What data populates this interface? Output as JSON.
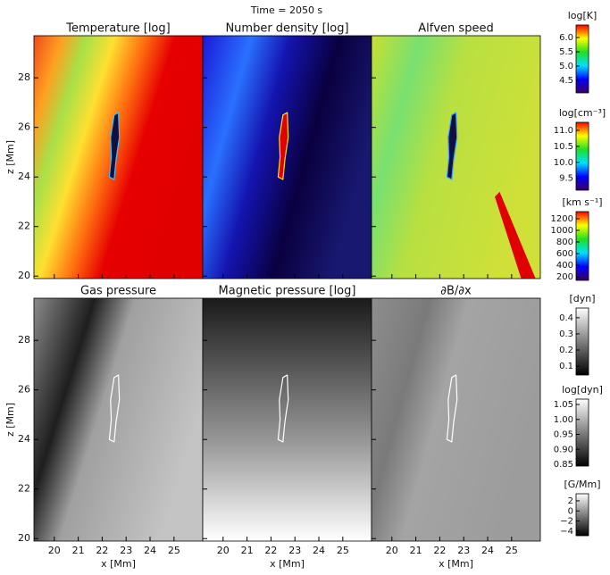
{
  "chart_data": {
    "type": "image-grid",
    "title": "Time = 2050 s",
    "xlabel": "x [Mm]",
    "ylabel": "z [Mm]",
    "xlim": [
      19.15,
      26.2
    ],
    "ylim": [
      19.9,
      29.7
    ],
    "xticks": [
      20,
      21,
      22,
      23,
      24,
      25
    ],
    "yticks": [
      20,
      22,
      24,
      26,
      28
    ],
    "panels": [
      {
        "title": "Temperature [log]",
        "colormap": "rainbow",
        "colorbar": {
          "label": "log[K]",
          "clim": [
            4.06,
            6.44
          ],
          "ticks": [
            4.5,
            {
              "value": 5,
              "label": "5.0"
            },
            5.5,
            {
              "value": 6,
              "label": "6.0"
            }
          ]
        }
      },
      {
        "title": "Number density [log]",
        "colormap": "rainbow",
        "colorbar": {
          "label": "log[cm⁻³]",
          "clim": [
            9.13,
            11.25
          ],
          "ticks": [
            9.5,
            {
              "value": 10,
              "label": "10.0"
            },
            10.5,
            {
              "value": 11,
              "label": "11.0"
            }
          ]
        }
      },
      {
        "title": "Alfven speed",
        "colormap": "rainbow",
        "colorbar": {
          "label": "[km s⁻¹]",
          "clim": [
            139,
            1323
          ],
          "ticks": [
            200,
            400,
            600,
            800,
            1000,
            1200
          ]
        }
      },
      {
        "title": "Gas pressure",
        "colormap": "gray",
        "colorbar": {
          "label": "[dyn]",
          "clim": [
            0.045,
            0.46
          ],
          "ticks": [
            0.1,
            0.2,
            0.3,
            0.4
          ]
        }
      },
      {
        "title": "Magnetic pressure [log]",
        "colormap": "gray",
        "colorbar": {
          "label": "log[dyn]",
          "clim": [
            0.844,
            1.068
          ],
          "ticks": [
            0.85,
            {
              "value": 0.9,
              "label": "0.90"
            },
            0.95,
            {
              "value": 1,
              "label": "1.00"
            },
            1.05
          ]
        }
      },
      {
        "title": "∂B/∂x",
        "colormap": "gray",
        "colorbar": {
          "label": "[G/Mm]",
          "clim": [
            -4.9,
            3.4
          ],
          "ticks": [
            {
              "value": -4,
              "label": "−4"
            },
            {
              "value": -2,
              "label": "−2"
            },
            0,
            2
          ]
        }
      }
    ]
  }
}
